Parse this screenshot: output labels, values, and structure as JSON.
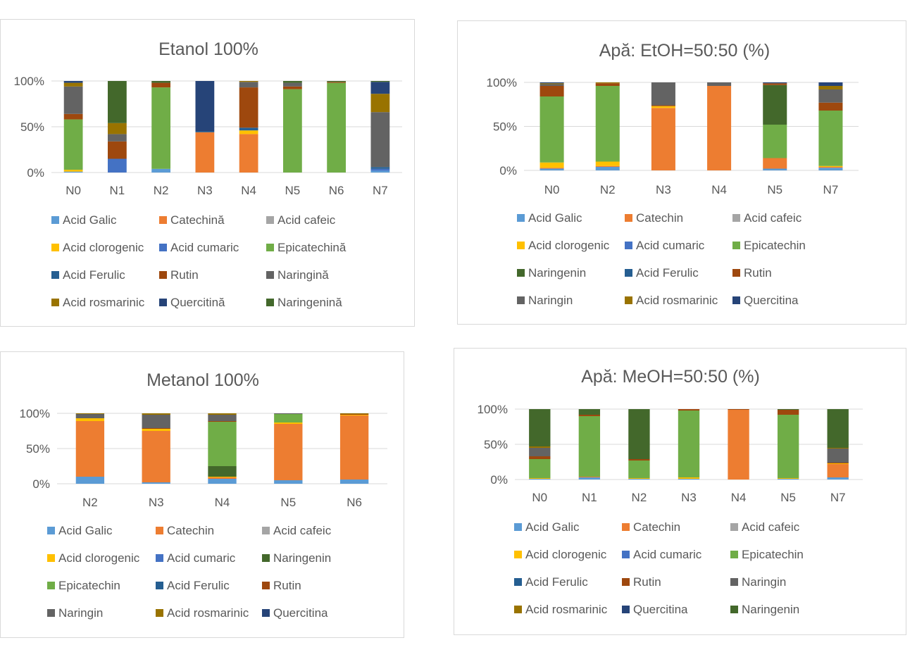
{
  "colors": {
    "acid_galic": "#5B9BD5",
    "catechin": "#ED7D31",
    "acid_cafeic": "#A5A5A5",
    "acid_clorogenic": "#FFC000",
    "acid_cumaric": "#4472C4",
    "epicatechin": "#70AD47",
    "acid_ferulic": "#255E91",
    "rutin": "#9E480E",
    "naringin": "#636363",
    "acid_rosmarinic": "#997300",
    "quercitina": "#264478",
    "naringenin": "#43682B"
  },
  "chart_data": [
    {
      "type": "bar",
      "stacked": true,
      "title": "Etanol 100%",
      "yticks": [
        "0%",
        "50%",
        "100%"
      ],
      "ylim": [
        0,
        100
      ],
      "categories": [
        "N0",
        "N1",
        "N2",
        "N3",
        "N4",
        "N5",
        "N6",
        "N7"
      ],
      "series": [
        {
          "name": "Acid Galic",
          "color": "acid_galic",
          "values": [
            1,
            0,
            4,
            0,
            0,
            0,
            0,
            2
          ]
        },
        {
          "name": "Catechină",
          "color": "catechin",
          "values": [
            0,
            0,
            0,
            44,
            42,
            0,
            0,
            0
          ]
        },
        {
          "name": "Acid cafeic",
          "color": "acid_cafeic",
          "values": [
            0,
            0,
            0,
            0,
            0,
            0,
            0,
            0
          ]
        },
        {
          "name": "Acid clorogenic",
          "color": "acid_clorogenic",
          "values": [
            2,
            0,
            0,
            0,
            4,
            0,
            0,
            0
          ]
        },
        {
          "name": "Acid cumaric",
          "color": "acid_cumaric",
          "values": [
            0,
            15,
            0,
            0,
            0,
            0,
            0,
            2
          ]
        },
        {
          "name": "Epicatechină",
          "color": "epicatechin",
          "values": [
            55,
            0,
            89,
            0,
            0,
            91,
            98,
            0
          ]
        },
        {
          "name": "Acid Ferulic",
          "color": "acid_ferulic",
          "values": [
            0,
            0,
            0,
            1,
            3,
            0,
            0,
            2
          ]
        },
        {
          "name": "Rutin",
          "color": "rutin",
          "values": [
            6,
            19,
            5,
            0,
            44,
            3,
            1,
            0
          ]
        },
        {
          "name": "Naringină",
          "color": "naringin",
          "values": [
            30,
            8,
            0,
            0,
            6,
            4,
            0,
            60
          ]
        },
        {
          "name": "Acid rosmarinic",
          "color": "acid_rosmarinic",
          "values": [
            4,
            12,
            0,
            0,
            1,
            0,
            0,
            20
          ]
        },
        {
          "name": "Quercitină",
          "color": "quercitina",
          "values": [
            2,
            0,
            0,
            55,
            0,
            0,
            0,
            13
          ]
        },
        {
          "name": "Naringenină",
          "color": "naringenin",
          "values": [
            0,
            46,
            2,
            0,
            0,
            2,
            1,
            1
          ]
        }
      ]
    },
    {
      "type": "bar",
      "stacked": true,
      "title": "Apă: EtOH=50:50 (%)",
      "yticks": [
        "0%",
        "50%",
        "100%"
      ],
      "ylim": [
        0,
        100
      ],
      "categories": [
        "N0",
        "N2",
        "N3",
        "N4",
        "N5",
        "N7"
      ],
      "series": [
        {
          "name": "Acid Galic",
          "color": "acid_galic",
          "values": [
            2,
            4,
            0,
            0,
            2,
            3
          ]
        },
        {
          "name": "Catechin",
          "color": "catechin",
          "values": [
            1,
            1,
            71,
            96,
            12,
            1
          ]
        },
        {
          "name": "Acid cafeic",
          "color": "acid_cafeic",
          "values": [
            0,
            0,
            0,
            0,
            0,
            0
          ]
        },
        {
          "name": "Acid clorogenic",
          "color": "acid_clorogenic",
          "values": [
            6,
            5,
            2,
            0,
            0,
            1
          ]
        },
        {
          "name": "Acid cumaric",
          "color": "acid_cumaric",
          "values": [
            0,
            0,
            0,
            0,
            0,
            0
          ]
        },
        {
          "name": "Epicatechin",
          "color": "epicatechin",
          "values": [
            75,
            86,
            0,
            0,
            38,
            63
          ]
        },
        {
          "name": "Naringenin",
          "color": "naringenin",
          "values": [
            0,
            0,
            0,
            0,
            45,
            0
          ]
        },
        {
          "name": "Acid Ferulic",
          "color": "acid_ferulic",
          "values": [
            0,
            0,
            0,
            0,
            0,
            0
          ]
        },
        {
          "name": "Rutin",
          "color": "rutin",
          "values": [
            12,
            3,
            1,
            0,
            2,
            9
          ]
        },
        {
          "name": "Naringin",
          "color": "naringin",
          "values": [
            2,
            0,
            26,
            4,
            0,
            15
          ]
        },
        {
          "name": "Acid rosmarinic",
          "color": "acid_rosmarinic",
          "values": [
            1,
            1,
            0,
            0,
            0,
            4
          ]
        },
        {
          "name": "Quercitina",
          "color": "quercitina",
          "values": [
            1,
            0,
            0,
            0,
            1,
            4
          ]
        }
      ]
    },
    {
      "type": "bar",
      "stacked": true,
      "title": "Metanol 100%",
      "yticks": [
        "0%",
        "50%",
        "100%"
      ],
      "ylim": [
        0,
        100
      ],
      "categories": [
        "N2",
        "N3",
        "N4",
        "N5",
        "N6"
      ],
      "series": [
        {
          "name": "Acid Galic",
          "color": "acid_galic",
          "values": [
            10,
            2,
            7,
            5,
            6
          ]
        },
        {
          "name": "Catechin",
          "color": "catechin",
          "values": [
            79,
            73,
            2,
            80,
            91
          ]
        },
        {
          "name": "Acid cafeic",
          "color": "acid_cafeic",
          "values": [
            0,
            0,
            0,
            0,
            0
          ]
        },
        {
          "name": "Acid clorogenic",
          "color": "acid_clorogenic",
          "values": [
            4,
            3,
            1,
            2,
            1
          ]
        },
        {
          "name": "Acid cumaric",
          "color": "acid_cumaric",
          "values": [
            0,
            0,
            0,
            0,
            0
          ]
        },
        {
          "name": "Naringenin",
          "color": "naringenin",
          "values": [
            0,
            0,
            15,
            0,
            0
          ]
        },
        {
          "name": "Epicatechin",
          "color": "epicatechin",
          "values": [
            0,
            0,
            63,
            12,
            0
          ]
        },
        {
          "name": "Acid Ferulic",
          "color": "acid_ferulic",
          "values": [
            0,
            0,
            0,
            0,
            0
          ]
        },
        {
          "name": "Rutin",
          "color": "rutin",
          "values": [
            0,
            1,
            1,
            0,
            1
          ]
        },
        {
          "name": "Naringin",
          "color": "naringin",
          "values": [
            6,
            19,
            9,
            1,
            0
          ]
        },
        {
          "name": "Acid rosmarinic",
          "color": "acid_rosmarinic",
          "values": [
            1,
            2,
            2,
            0,
            1
          ]
        },
        {
          "name": "Quercitina",
          "color": "quercitina",
          "values": [
            0,
            0,
            0,
            0,
            0
          ]
        }
      ]
    },
    {
      "type": "bar",
      "stacked": true,
      "title": "Apă: MeOH=50:50 (%)",
      "yticks": [
        "0%",
        "50%",
        "100%"
      ],
      "ylim": [
        0,
        100
      ],
      "categories": [
        "N0",
        "N1",
        "N2",
        "N3",
        "N4",
        "N5",
        "N7"
      ],
      "series": [
        {
          "name": "Acid Galic",
          "color": "acid_galic",
          "values": [
            1,
            3,
            1,
            1,
            0,
            1,
            3
          ]
        },
        {
          "name": "Catechin",
          "color": "catechin",
          "values": [
            0,
            1,
            0,
            0,
            99,
            0,
            19
          ]
        },
        {
          "name": "Acid cafeic",
          "color": "acid_cafeic",
          "values": [
            0,
            0,
            0,
            0,
            0,
            0,
            0
          ]
        },
        {
          "name": "Acid clorogenic",
          "color": "acid_clorogenic",
          "values": [
            1,
            0,
            1,
            2,
            0,
            1,
            1
          ]
        },
        {
          "name": "Acid cumaric",
          "color": "acid_cumaric",
          "values": [
            0,
            0,
            0,
            0,
            0,
            0,
            0
          ]
        },
        {
          "name": "Epicatechin",
          "color": "epicatechin",
          "values": [
            27,
            86,
            25,
            95,
            0,
            90,
            0
          ]
        },
        {
          "name": "Acid Ferulic",
          "color": "acid_ferulic",
          "values": [
            0,
            0,
            0,
            0,
            0,
            0,
            0
          ]
        },
        {
          "name": "Rutin",
          "color": "rutin",
          "values": [
            4,
            2,
            2,
            2,
            1,
            7,
            1
          ]
        },
        {
          "name": "Naringin",
          "color": "naringin",
          "values": [
            12,
            0,
            0,
            0,
            0,
            0,
            20
          ]
        },
        {
          "name": "Acid rosmarinic",
          "color": "acid_rosmarinic",
          "values": [
            2,
            0,
            0,
            0,
            0,
            0,
            1
          ]
        },
        {
          "name": "Quercitina",
          "color": "quercitina",
          "values": [
            0,
            0,
            0,
            0,
            0,
            0,
            0
          ]
        },
        {
          "name": "Naringenin",
          "color": "naringenin",
          "values": [
            53,
            8,
            71,
            0,
            0,
            1,
            55
          ]
        }
      ]
    }
  ]
}
